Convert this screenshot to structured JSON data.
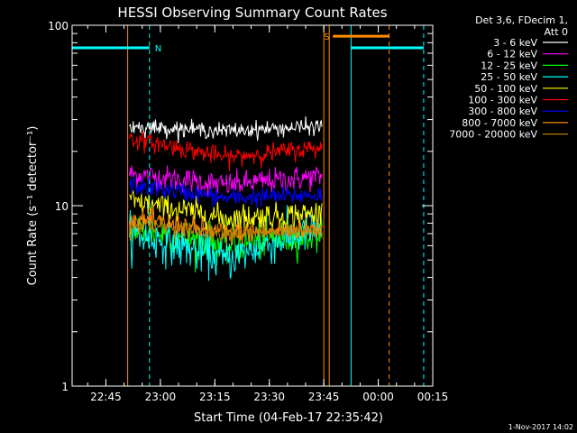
{
  "chart_data": {
    "type": "line",
    "title": "HESSI Observing Summary Count Rates",
    "xlabel": "Start Time (04-Feb-17 22:35:42)",
    "ylabel": "Count Rate (s⁻¹ detector⁻¹)",
    "yscale": "log",
    "ylim": [
      1,
      100
    ],
    "xlim": [
      "22:35:42",
      "00:15:00"
    ],
    "yticks": [
      "1",
      "10",
      "100"
    ],
    "xticks": [
      "22:45",
      "23:00",
      "23:15",
      "23:30",
      "23:45",
      "00:00",
      "00:15"
    ],
    "legend_header": [
      "Det 3,6, FDecim 1,",
      "Att 0"
    ],
    "legend_position": "right",
    "footer_date": "1-Nov-2017 14:02",
    "data_window": {
      "start": "22:51:30",
      "end": "23:44:30"
    },
    "series": [
      {
        "name": "3 - 6 keV",
        "color": "#ffffff",
        "start": 27.5,
        "mid": 26.0,
        "end": 27.5,
        "noise": 0.05
      },
      {
        "name": "6 - 12 keV",
        "color": "#ff00ff",
        "start": 15.0,
        "mid": 13.0,
        "end": 14.5,
        "noise": 0.08
      },
      {
        "name": "12 - 25 keV",
        "color": "#00ff00",
        "start": 7.5,
        "mid": 6.0,
        "end": 7.0,
        "noise": 0.12
      },
      {
        "name": "25 - 50 keV",
        "color": "#00ffff",
        "start": 7.0,
        "mid": 5.0,
        "end": 7.5,
        "noise": 0.13
      },
      {
        "name": "50 - 100 keV",
        "color": "#ffff00",
        "start": 10.5,
        "mid": 8.5,
        "end": 9.0,
        "noise": 0.09
      },
      {
        "name": "100 - 300 keV",
        "color": "#ff0000",
        "start": 23.5,
        "mid": 18.5,
        "end": 21.0,
        "noise": 0.06
      },
      {
        "name": "300 - 800 keV",
        "color": "#0000ff",
        "start": 13.0,
        "mid": 11.0,
        "end": 11.5,
        "noise": 0.06
      },
      {
        "name": "800 - 7000 keV",
        "color": "#ff8c00",
        "start": 8.5,
        "mid": 7.0,
        "end": 7.5,
        "noise": 0.07
      },
      {
        "name": "7000 - 20000 keV",
        "color": "#bf8000",
        "start": 8.0,
        "mid": 7.0,
        "end": 7.2,
        "noise": 0.05
      }
    ],
    "markers": [
      {
        "type": "vline",
        "x": "22:35:42",
        "color": "#00ffff",
        "style": "solid"
      },
      {
        "type": "vline",
        "x": "22:51:00",
        "color": "#ff8c00",
        "style": "solid"
      },
      {
        "type": "vline",
        "x": "22:57:00",
        "color": "#00ffff",
        "style": "dashed"
      },
      {
        "type": "vline",
        "x": "23:45:00",
        "color": "#ff8c00",
        "style": "solid"
      },
      {
        "type": "vline",
        "x": "23:46:30",
        "color": "#ff8c00",
        "style": "solid"
      },
      {
        "type": "vline",
        "x": "23:52:30",
        "color": "#00ffff",
        "style": "solid"
      },
      {
        "type": "vline",
        "x": "00:03:00",
        "color": "#ff8c00",
        "style": "dashed"
      },
      {
        "type": "vline",
        "x": "00:12:30",
        "color": "#00ffff",
        "style": "dashed"
      },
      {
        "type": "hbar",
        "x_start": "22:35:42",
        "x_end": "22:57:00",
        "y": 75,
        "color": "#00ffff",
        "label": "N"
      },
      {
        "type": "hbar",
        "x_start": "23:47:30",
        "x_end": "00:03:00",
        "y": 87,
        "color": "#ff8c00",
        "label": "S"
      },
      {
        "type": "hbar",
        "x_start": "23:52:30",
        "x_end": "00:12:30",
        "y": 75,
        "color": "#00ffff",
        "label": ""
      }
    ]
  }
}
